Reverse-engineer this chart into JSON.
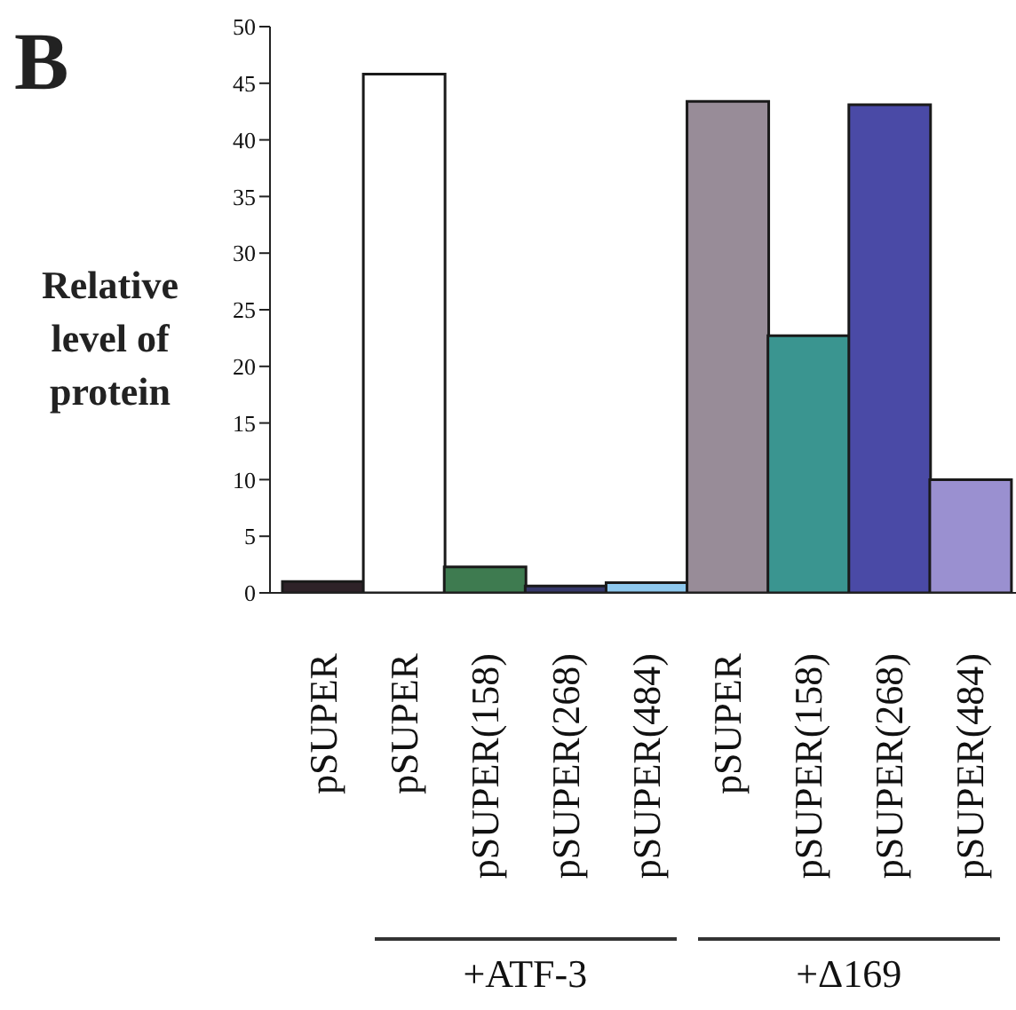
{
  "chart_data": {
    "type": "bar",
    "title": "B",
    "ylabel": "Relative level of protein",
    "categories": [
      "pSUPER",
      "pSUPER",
      "pSUPER(158)",
      "pSUPER(268)",
      "pSUPER(484)",
      "pSUPER",
      "pSUPER(158)",
      "pSUPER(268)",
      "pSUPER(484)"
    ],
    "values": [
      1,
      45.8,
      2.3,
      0.6,
      0.9,
      43.4,
      22.7,
      43.1,
      10
    ],
    "colors": [
      "#2e2228",
      "#ffffff",
      "#3e7b50",
      "#36386a",
      "#8ec8ee",
      "#988c98",
      "#3a9590",
      "#4a4aa6",
      "#9a90d0"
    ],
    "ylim": [
      0,
      50
    ],
    "yticks": [
      0,
      5,
      10,
      15,
      20,
      25,
      30,
      35,
      40,
      45,
      50
    ],
    "annotations": [
      "+ATF-3",
      "+Δ169"
    ],
    "grid": false,
    "legend": false
  }
}
